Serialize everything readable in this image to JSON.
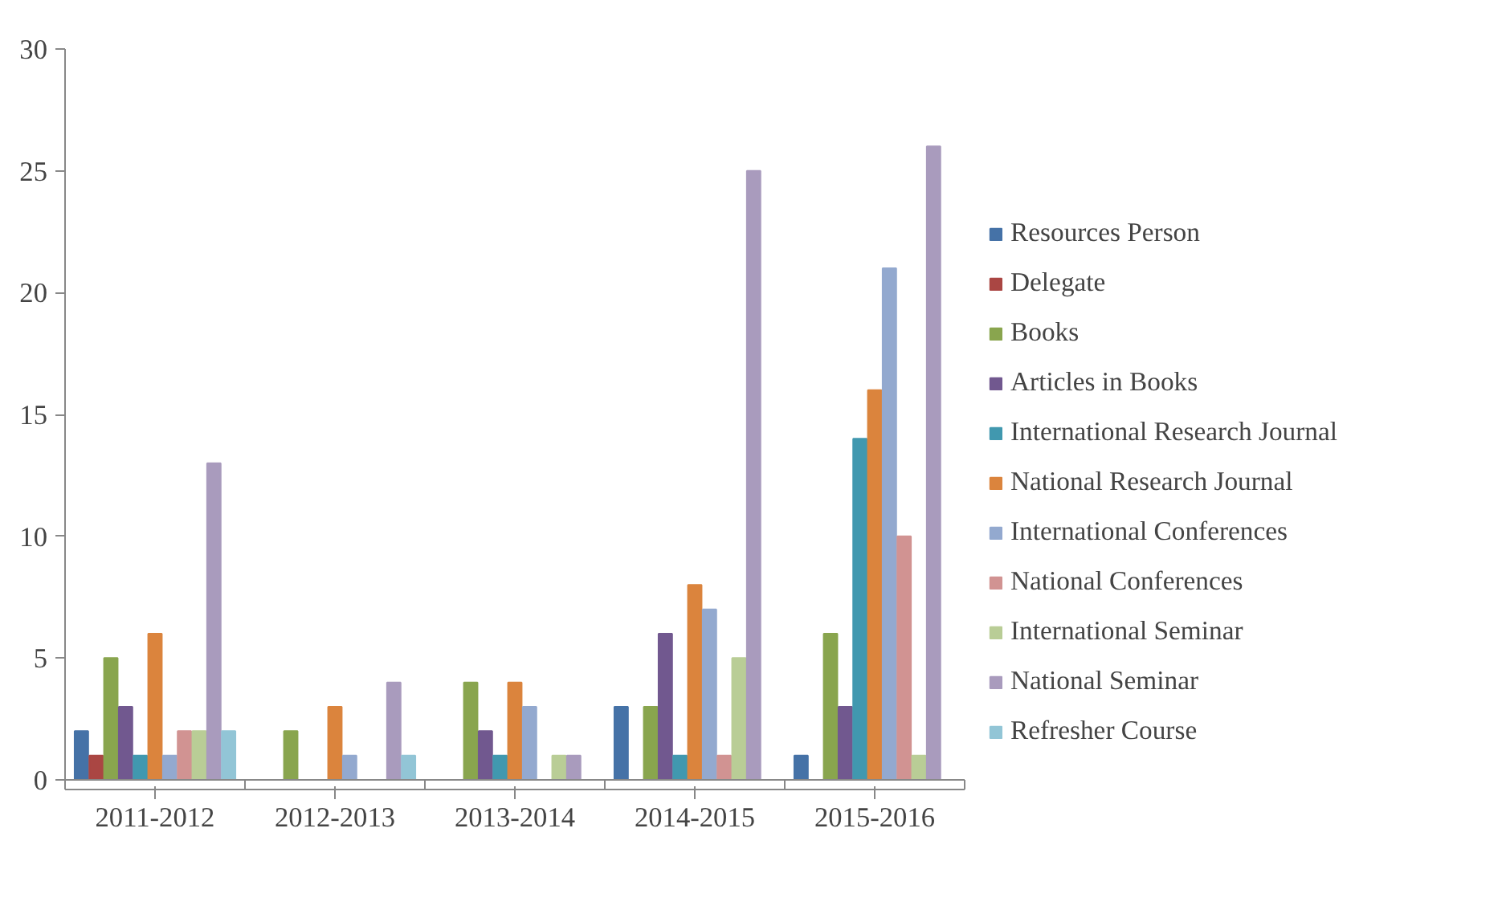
{
  "chart_data": {
    "type": "bar",
    "categories": [
      "2011-2012",
      "2012-2013",
      "2013-2014",
      "2014-2015",
      "2015-2016"
    ],
    "ylim": [
      0,
      30
    ],
    "yticks": [
      0,
      5,
      10,
      15,
      20,
      25,
      30
    ],
    "grid": false,
    "legend": "right",
    "series": [
      {
        "name": "Resources Person",
        "color": "#4572a7",
        "values": [
          2,
          0,
          0,
          3,
          1
        ]
      },
      {
        "name": "Delegate",
        "color": "#aa4643",
        "values": [
          1,
          0,
          0,
          0,
          0
        ]
      },
      {
        "name": "Books",
        "color": "#89a54e",
        "values": [
          5,
          2,
          4,
          3,
          6
        ]
      },
      {
        "name": "Articles in Books",
        "color": "#71588f",
        "values": [
          3,
          0,
          2,
          6,
          3
        ]
      },
      {
        "name": "International Research Journal",
        "color": "#4198af",
        "values": [
          1,
          0,
          1,
          1,
          14
        ]
      },
      {
        "name": "National Research Journal",
        "color": "#db843d",
        "values": [
          6,
          3,
          4,
          8,
          16
        ]
      },
      {
        "name": "International Conferences",
        "color": "#93a9cf",
        "values": [
          1,
          1,
          3,
          7,
          21
        ]
      },
      {
        "name": "National Conferences",
        "color": "#d19392",
        "values": [
          2,
          0,
          0,
          1,
          10
        ]
      },
      {
        "name": "International Seminar",
        "color": "#b9cd96",
        "values": [
          2,
          0,
          1,
          5,
          1
        ]
      },
      {
        "name": "National Seminar",
        "color": "#a99bbd",
        "values": [
          13,
          4,
          1,
          25,
          26
        ]
      },
      {
        "name": "Refresher Course",
        "color": "#92c5d6",
        "values": [
          2,
          1,
          0,
          0,
          0
        ]
      }
    ]
  }
}
